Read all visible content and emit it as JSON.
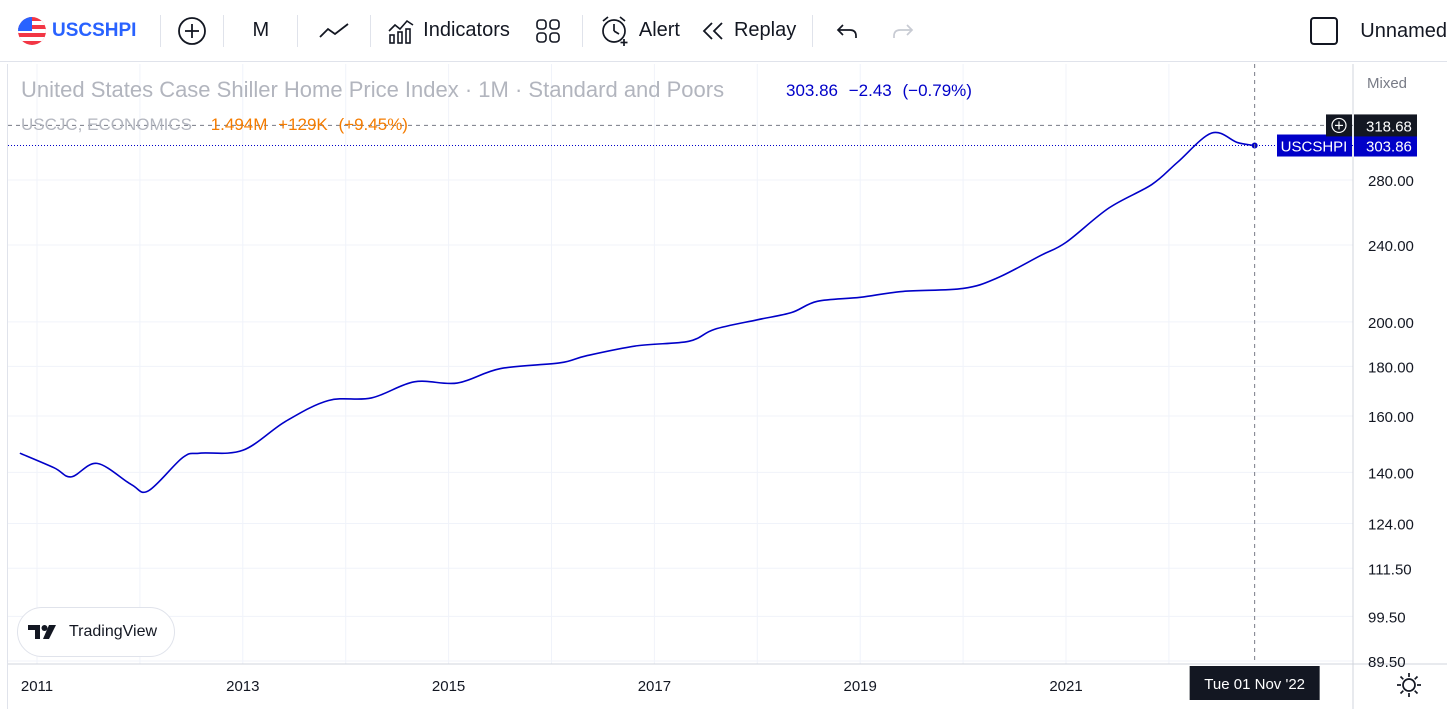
{
  "toolbar": {
    "symbol": "USCSHPI",
    "interval": "M",
    "indicators_label": "Indicators",
    "alert_label": "Alert",
    "replay_label": "Replay",
    "layout_name": "Unnamed",
    "icons": [
      "us-flag-icon",
      "plus-circle-icon",
      "line-chart-icon",
      "indicators-icon",
      "layout-grid-icon",
      "alert-clock-icon",
      "replay-icon",
      "undo-icon",
      "redo-icon",
      "checkbox-icon"
    ]
  },
  "legend": {
    "title": "United States Case Shiller Home Price Index · 1M · Standard and Poors",
    "last": "303.86",
    "change": "−2.43",
    "change_pct": "(−0.79%)",
    "compare_name": "USCJC, ECONOMICS",
    "compare_value": "1.494M",
    "compare_change": "+129K",
    "compare_change_pct": "(+9.45%)"
  },
  "scale_mode": "Mixed",
  "badge": {
    "text": "TradingView"
  },
  "chart_data": {
    "type": "line",
    "series": [
      {
        "name": "USCSHPI",
        "color": "#0000c8",
        "points": [
          [
            "2010-11",
            146.5
          ],
          [
            "2011-03",
            141.5
          ],
          [
            "2011-05",
            138.5
          ],
          [
            "2011-08",
            143.0
          ],
          [
            "2011-12",
            136.0
          ],
          [
            "2012-02",
            134.0
          ],
          [
            "2012-06",
            145.0
          ],
          [
            "2012-08",
            146.5
          ],
          [
            "2013-01",
            147.5
          ],
          [
            "2013-06",
            158.0
          ],
          [
            "2013-11",
            166.0
          ],
          [
            "2014-04",
            167.0
          ],
          [
            "2014-09",
            173.5
          ],
          [
            "2015-02",
            173.0
          ],
          [
            "2015-07",
            179.0
          ],
          [
            "2016-02",
            181.5
          ],
          [
            "2016-05",
            184.5
          ],
          [
            "2016-11",
            189.0
          ],
          [
            "2017-05",
            191.0
          ],
          [
            "2017-08",
            196.5
          ],
          [
            "2018-01",
            201.0
          ],
          [
            "2018-05",
            204.5
          ],
          [
            "2018-08",
            210.0
          ],
          [
            "2019-01",
            212.0
          ],
          [
            "2019-06",
            215.0
          ],
          [
            "2020-01",
            216.5
          ],
          [
            "2020-05",
            222.0
          ],
          [
            "2020-10",
            234.0
          ],
          [
            "2021-01",
            241.5
          ],
          [
            "2021-06",
            262.0
          ],
          [
            "2021-11",
            277.0
          ],
          [
            "2022-02",
            292.0
          ],
          [
            "2022-06",
            313.0
          ],
          [
            "2022-09",
            306.0
          ],
          [
            "2022-11",
            303.86
          ]
        ]
      }
    ],
    "x_ticks": [
      "2011",
      "2013",
      "2015",
      "2017",
      "2019",
      "2021"
    ],
    "y_ticks": [
      "280.00",
      "240.00",
      "200.00",
      "180.00",
      "160.00",
      "140.00",
      "124.00",
      "111.50",
      "99.50",
      "89.50"
    ],
    "y_tick_values": [
      280,
      240,
      200,
      180,
      160,
      140,
      124,
      111.5,
      99.5,
      89.5
    ],
    "y_scale": "log",
    "grid": true,
    "last_price_label": {
      "symbol": "USCSHPI",
      "value": "303.86",
      "color": "#0000c8"
    },
    "crosshair": {
      "price": "318.68",
      "price_value": 318.68,
      "date_label": "Tue 01 Nov '22",
      "date": "2022-11"
    }
  }
}
